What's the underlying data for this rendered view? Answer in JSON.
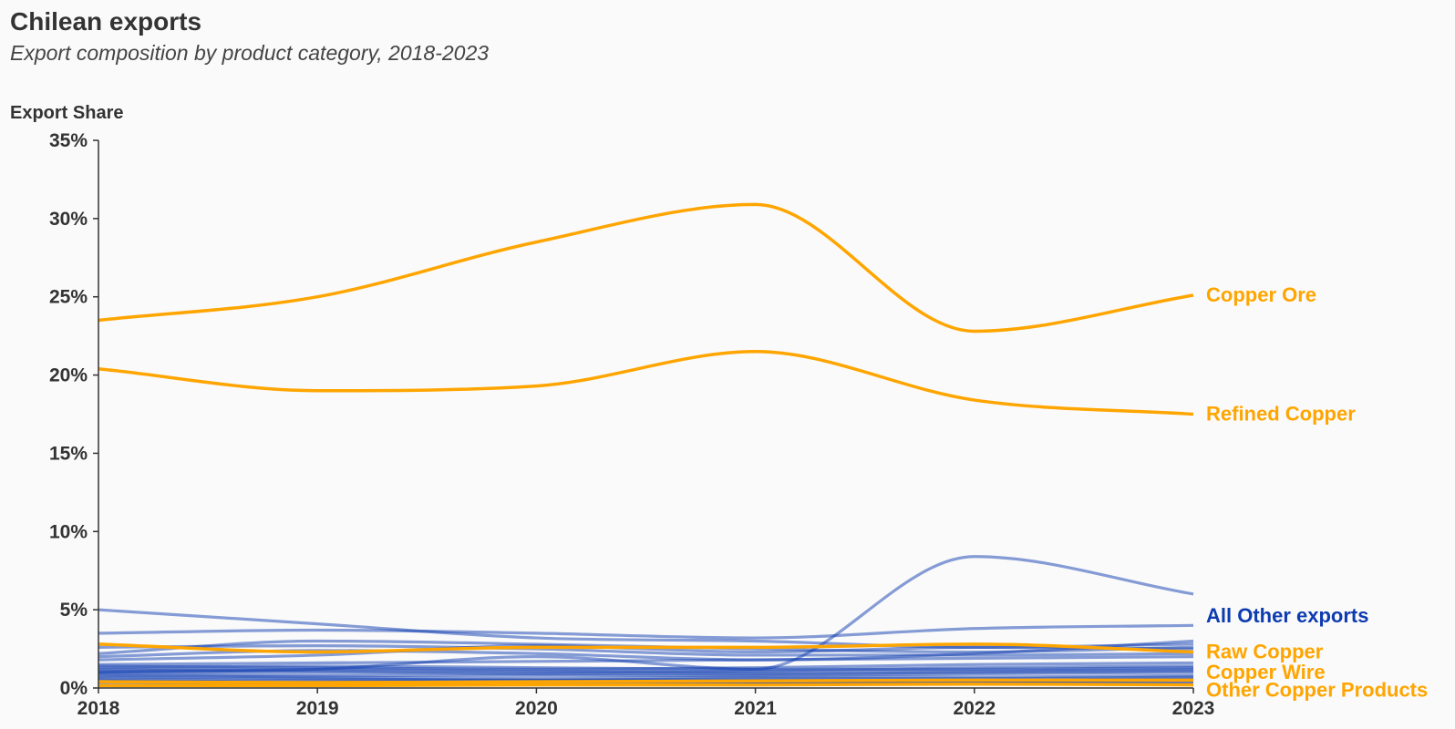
{
  "header": {
    "title": "Chilean exports",
    "subtitle": "Export composition by product category, 2018-2023"
  },
  "colors": {
    "highlight": "#ffa500",
    "other": "#0d3bb0",
    "axis": "#333333",
    "background": "#fafafa"
  },
  "chart_data": {
    "type": "line",
    "title": "Chilean exports",
    "subtitle": "Export composition by product category, 2018-2023",
    "xlabel": "",
    "ylabel": "Export Share",
    "x": [
      2018,
      2019,
      2020,
      2021,
      2022,
      2023
    ],
    "xticks": [
      "2018",
      "2019",
      "2020",
      "2021",
      "2022",
      "2023"
    ],
    "ylim": [
      0,
      35
    ],
    "yticks": [
      {
        "value": 0,
        "label": "0%"
      },
      {
        "value": 5,
        "label": "5%"
      },
      {
        "value": 10,
        "label": "10%"
      },
      {
        "value": 15,
        "label": "15%"
      },
      {
        "value": 20,
        "label": "20%"
      },
      {
        "value": 25,
        "label": "25%"
      },
      {
        "value": 30,
        "label": "30%"
      },
      {
        "value": 35,
        "label": "35%"
      }
    ],
    "grid": false,
    "legend": "direct labels at right end of lines",
    "highlighted_series": [
      {
        "name": "Copper Ore",
        "values": [
          23.5,
          25.0,
          28.5,
          30.9,
          22.8,
          25.1
        ]
      },
      {
        "name": "Refined Copper",
        "values": [
          20.4,
          19.0,
          19.3,
          21.5,
          18.4,
          17.5
        ]
      },
      {
        "name": "Raw Copper",
        "values": [
          2.8,
          2.3,
          2.6,
          2.6,
          2.8,
          2.3
        ]
      },
      {
        "name": "Copper Wire",
        "values": [
          0.4,
          0.35,
          0.4,
          0.45,
          0.5,
          0.5
        ]
      },
      {
        "name": "Other Copper Products",
        "values": [
          0.15,
          0.15,
          0.2,
          0.2,
          0.25,
          0.2
        ]
      }
    ],
    "background_series_label": "All Other exports",
    "background_series": [
      [
        1.0,
        1.2,
        2.0,
        1.2,
        8.4,
        6.0
      ],
      [
        5.0,
        4.1,
        3.2,
        3.0,
        2.6,
        2.8
      ],
      [
        3.5,
        3.7,
        3.5,
        3.2,
        3.8,
        4.0
      ],
      [
        2.2,
        3.0,
        2.8,
        2.5,
        2.3,
        2.6
      ],
      [
        2.6,
        2.7,
        2.5,
        2.1,
        2.1,
        2.2
      ],
      [
        2.0,
        2.4,
        2.2,
        1.8,
        2.2,
        3.0
      ],
      [
        1.8,
        2.1,
        2.7,
        2.3,
        2.6,
        2.5
      ],
      [
        1.5,
        1.6,
        1.7,
        1.8,
        1.9,
        2.0
      ],
      [
        1.4,
        1.3,
        1.2,
        1.3,
        1.5,
        1.6
      ],
      [
        1.2,
        1.1,
        1.0,
        1.1,
        1.3,
        1.4
      ],
      [
        1.0,
        1.0,
        0.9,
        0.9,
        1.0,
        1.1
      ],
      [
        0.9,
        0.8,
        0.8,
        0.8,
        0.9,
        1.0
      ],
      [
        0.8,
        0.7,
        0.6,
        0.7,
        0.7,
        0.8
      ],
      [
        0.7,
        0.6,
        0.5,
        0.6,
        0.6,
        0.7
      ],
      [
        0.6,
        0.5,
        0.5,
        0.5,
        0.5,
        0.6
      ],
      [
        0.5,
        0.4,
        0.4,
        0.4,
        0.4,
        0.5
      ],
      [
        0.4,
        0.3,
        0.3,
        0.3,
        0.3,
        0.4
      ],
      [
        0.3,
        0.25,
        0.2,
        0.25,
        0.3,
        0.3
      ],
      [
        1.3,
        1.4,
        1.3,
        1.2,
        1.2,
        1.3
      ],
      [
        1.1,
        1.2,
        1.1,
        1.0,
        1.1,
        1.2
      ]
    ]
  }
}
